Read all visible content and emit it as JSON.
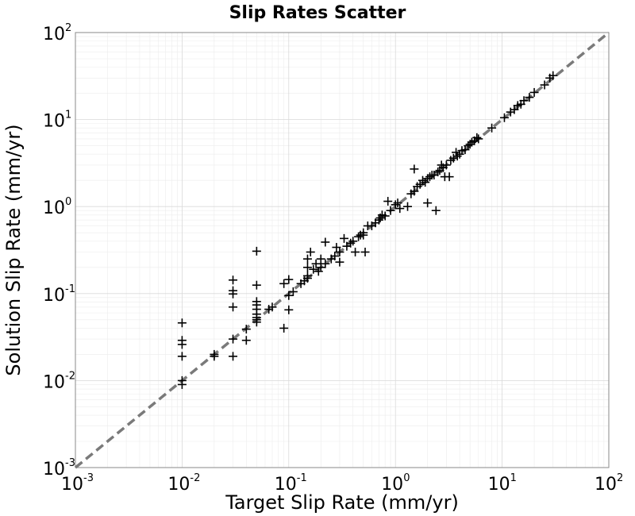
{
  "chart_data": {
    "type": "scatter",
    "title": "Slip Rates Scatter",
    "xlabel": "Target Slip Rate (mm/yr)",
    "ylabel": "Solution Slip Rate (mm/yr)",
    "x_scale": "log",
    "y_scale": "log",
    "xlim": [
      0.001,
      100
    ],
    "ylim": [
      0.001,
      100
    ],
    "grid": true,
    "marker": "plus",
    "marker_color": "#000000",
    "x_ticks": [
      {
        "base": "10",
        "exp": "-3"
      },
      {
        "base": "10",
        "exp": "-2"
      },
      {
        "base": "10",
        "exp": "-1"
      },
      {
        "base": "10",
        "exp": "0"
      },
      {
        "base": "10",
        "exp": "1"
      },
      {
        "base": "10",
        "exp": "2"
      }
    ],
    "y_ticks": [
      {
        "base": "10",
        "exp": "-3"
      },
      {
        "base": "10",
        "exp": "-2"
      },
      {
        "base": "10",
        "exp": "-1"
      },
      {
        "base": "10",
        "exp": "0"
      },
      {
        "base": "10",
        "exp": "1"
      },
      {
        "base": "10",
        "exp": "2"
      }
    ],
    "reference_line": {
      "style": "dashed",
      "color": "#7a7a7a",
      "from": [
        0.001,
        0.001
      ],
      "to": [
        100,
        100
      ]
    },
    "points": [
      [
        0.01,
        0.046
      ],
      [
        0.01,
        0.029
      ],
      [
        0.01,
        0.026
      ],
      [
        0.01,
        0.019
      ],
      [
        0.01,
        0.01
      ],
      [
        0.01,
        0.009
      ],
      [
        0.02,
        0.02
      ],
      [
        0.02,
        0.019
      ],
      [
        0.03,
        0.143
      ],
      [
        0.03,
        0.108
      ],
      [
        0.03,
        0.099
      ],
      [
        0.03,
        0.07
      ],
      [
        0.03,
        0.03
      ],
      [
        0.03,
        0.019
      ],
      [
        0.04,
        0.039
      ],
      [
        0.04,
        0.029
      ],
      [
        0.05,
        0.307
      ],
      [
        0.05,
        0.125
      ],
      [
        0.05,
        0.081
      ],
      [
        0.05,
        0.074
      ],
      [
        0.05,
        0.066
      ],
      [
        0.05,
        0.058
      ],
      [
        0.05,
        0.053
      ],
      [
        0.05,
        0.05
      ],
      [
        0.05,
        0.047
      ],
      [
        0.065,
        0.066
      ],
      [
        0.07,
        0.07
      ],
      [
        0.09,
        0.13
      ],
      [
        0.09,
        0.04
      ],
      [
        0.1,
        0.145
      ],
      [
        0.1,
        0.065
      ],
      [
        0.1,
        0.095
      ],
      [
        0.11,
        0.105
      ],
      [
        0.13,
        0.13
      ],
      [
        0.14,
        0.14
      ],
      [
        0.15,
        0.25
      ],
      [
        0.15,
        0.2
      ],
      [
        0.15,
        0.16
      ],
      [
        0.15,
        0.15
      ],
      [
        0.16,
        0.3
      ],
      [
        0.17,
        0.19
      ],
      [
        0.18,
        0.22
      ],
      [
        0.19,
        0.18
      ],
      [
        0.2,
        0.2
      ],
      [
        0.2,
        0.25
      ],
      [
        0.22,
        0.39
      ],
      [
        0.22,
        0.22
      ],
      [
        0.25,
        0.25
      ],
      [
        0.27,
        0.27
      ],
      [
        0.28,
        0.34
      ],
      [
        0.3,
        0.3
      ],
      [
        0.3,
        0.23
      ],
      [
        0.33,
        0.43
      ],
      [
        0.35,
        0.35
      ],
      [
        0.38,
        0.38
      ],
      [
        0.4,
        0.4
      ],
      [
        0.42,
        0.3
      ],
      [
        0.45,
        0.45
      ],
      [
        0.47,
        0.47
      ],
      [
        0.5,
        0.5
      ],
      [
        0.5,
        0.47
      ],
      [
        0.52,
        0.3
      ],
      [
        0.55,
        0.6
      ],
      [
        0.6,
        0.6
      ],
      [
        0.65,
        0.65
      ],
      [
        0.7,
        0.7
      ],
      [
        0.72,
        0.74
      ],
      [
        0.75,
        0.8
      ],
      [
        0.8,
        0.78
      ],
      [
        0.85,
        1.15
      ],
      [
        0.9,
        0.9
      ],
      [
        1.0,
        1.05
      ],
      [
        1.05,
        1.1
      ],
      [
        1.1,
        0.95
      ],
      [
        1.3,
        1.0
      ],
      [
        1.4,
        1.4
      ],
      [
        1.5,
        1.5
      ],
      [
        1.5,
        2.7
      ],
      [
        1.6,
        1.7
      ],
      [
        1.7,
        1.8
      ],
      [
        1.8,
        2.0
      ],
      [
        1.9,
        1.9
      ],
      [
        2.0,
        1.1
      ],
      [
        2.0,
        2.1
      ],
      [
        2.1,
        2.2
      ],
      [
        2.2,
        2.3
      ],
      [
        2.3,
        2.3
      ],
      [
        2.4,
        0.9
      ],
      [
        2.5,
        2.5
      ],
      [
        2.6,
        2.6
      ],
      [
        2.7,
        3.0
      ],
      [
        2.8,
        2.8
      ],
      [
        2.9,
        2.2
      ],
      [
        3.0,
        3.0
      ],
      [
        3.2,
        2.2
      ],
      [
        3.3,
        3.4
      ],
      [
        3.5,
        3.6
      ],
      [
        3.7,
        4.2
      ],
      [
        3.8,
        3.8
      ],
      [
        4.0,
        4.0
      ],
      [
        4.2,
        4.4
      ],
      [
        4.5,
        4.5
      ],
      [
        4.8,
        5.0
      ],
      [
        5.0,
        5.2
      ],
      [
        5.2,
        5.5
      ],
      [
        5.5,
        5.7
      ],
      [
        5.8,
        6.2
      ],
      [
        6.0,
        6.0
      ],
      [
        8.0,
        8.0
      ],
      [
        10.5,
        10.5
      ],
      [
        12.0,
        12.2
      ],
      [
        13.0,
        13.0
      ],
      [
        14.0,
        14.5
      ],
      [
        15.0,
        15.0
      ],
      [
        16.0,
        16.5
      ],
      [
        18.0,
        18.0
      ],
      [
        20.0,
        20.5
      ],
      [
        25.0,
        25.0
      ],
      [
        28.0,
        30.0
      ],
      [
        30.0,
        32.0
      ]
    ]
  }
}
